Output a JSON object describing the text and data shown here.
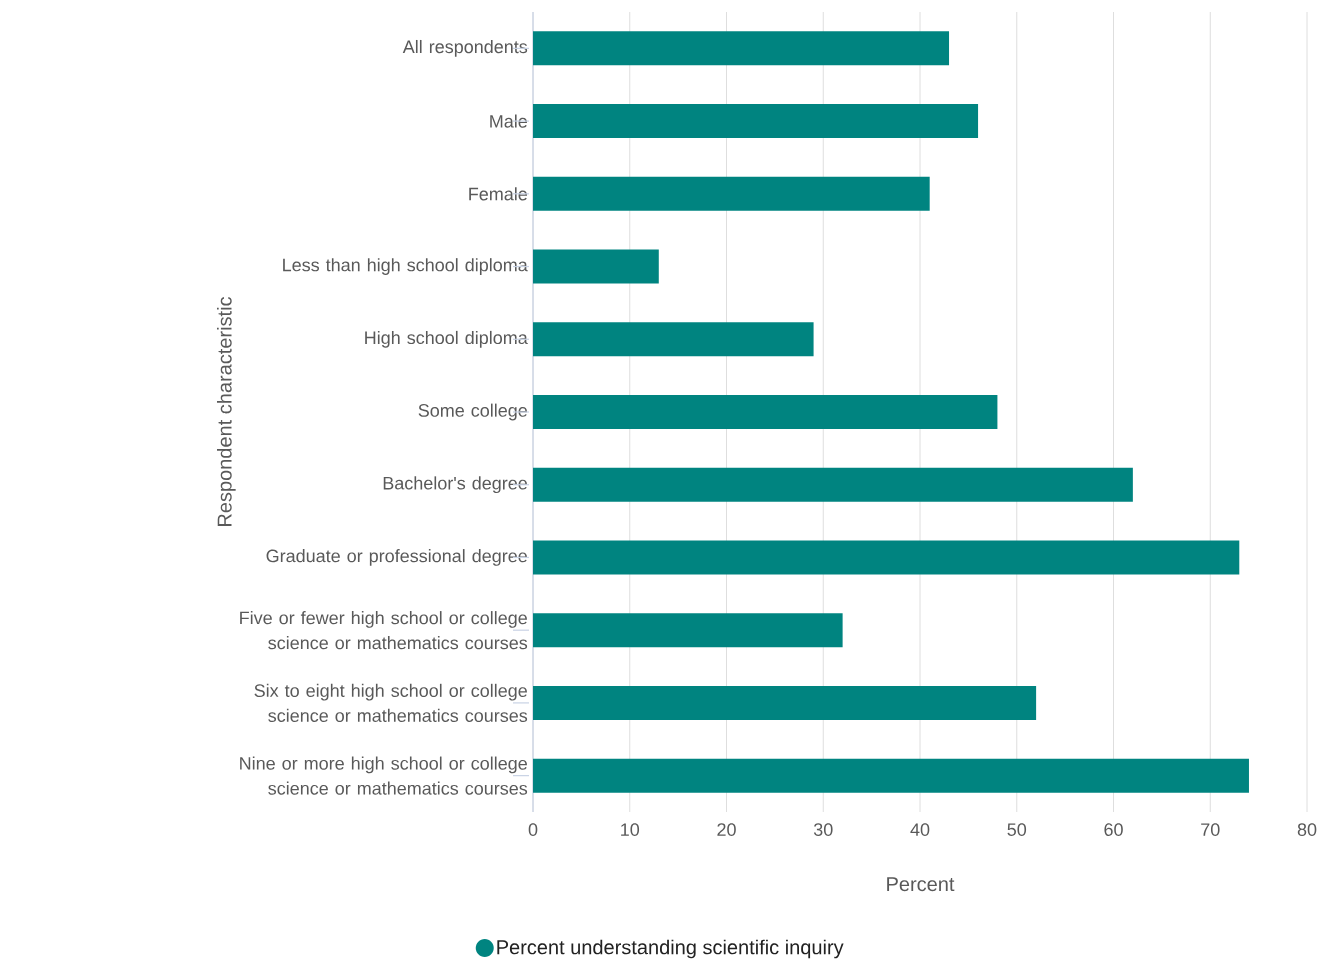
{
  "chart_data": {
    "type": "bar",
    "orientation": "horizontal",
    "xlabel": "Percent",
    "ylabel": "Respondent characteristic",
    "categories": [
      "All respondents",
      "Male",
      "Female",
      "Less than high school diploma",
      "High school diploma",
      "Some college",
      "Bachelor's degree",
      "Graduate or professional degree",
      "Five or fewer high school or college science or mathematics courses",
      "Six to eight high school or college science or mathematics courses",
      "Nine or more high school or college science or mathematics courses"
    ],
    "series": [
      {
        "name": "Percent understanding scientific inquiry",
        "color": "#008480",
        "values": [
          43,
          46,
          41,
          13,
          29,
          48,
          62,
          73,
          32,
          52,
          74
        ]
      }
    ],
    "xlim": [
      0,
      80
    ],
    "xticks": [
      0,
      10,
      20,
      30,
      40,
      50,
      60,
      70,
      80
    ],
    "grid": "x",
    "legend": "bottom"
  }
}
